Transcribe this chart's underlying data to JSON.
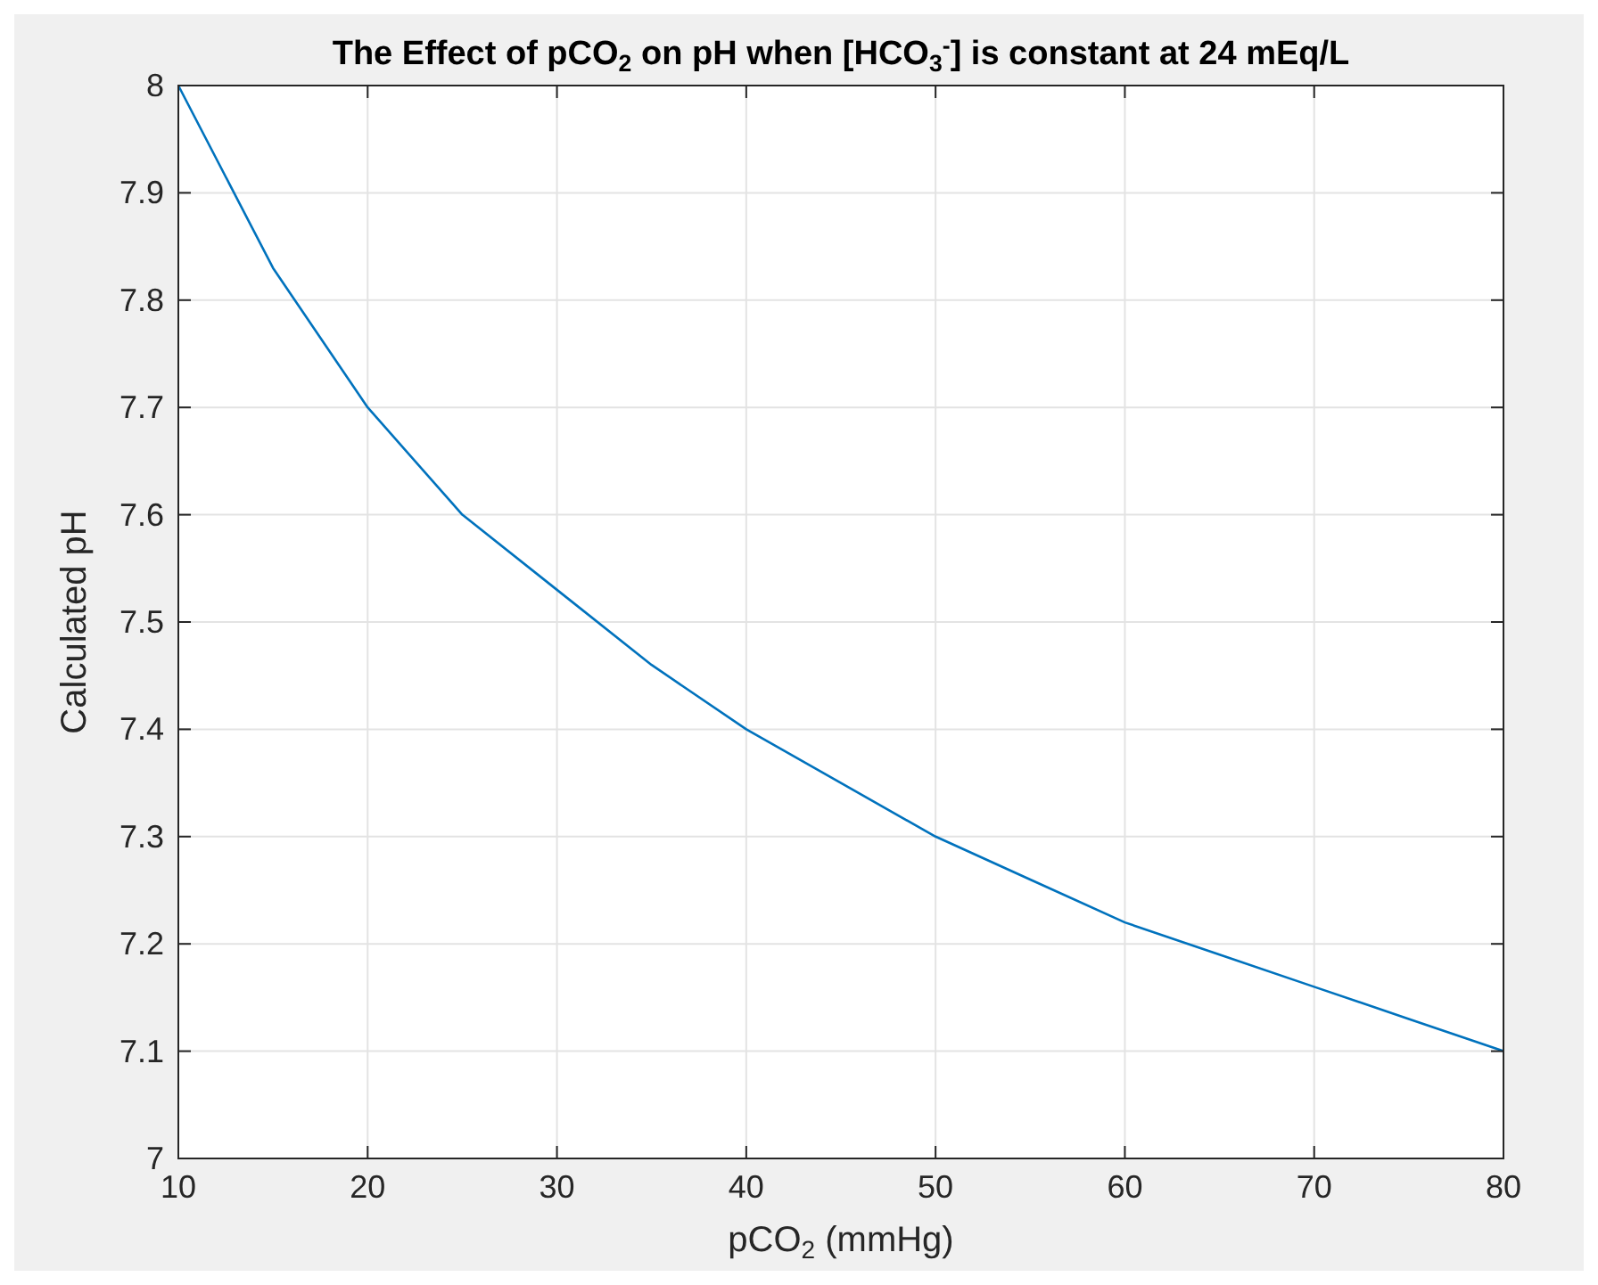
{
  "chart_data": {
    "type": "line",
    "title": "The Effect of pCO$_{2}$ on pH when [HCO$_{3}$$^{-}$] is constant at 24 mEq/L",
    "xlabel": "pCO$_{2}$ (mmHg)",
    "ylabel": "Calculated pH",
    "x": [
      10,
      15,
      20,
      25,
      30,
      35,
      40,
      45,
      50,
      55,
      60,
      65,
      70,
      75,
      80
    ],
    "series": [
      {
        "color": "#0072bd",
        "values": [
          8.0,
          7.83,
          7.7,
          7.6,
          7.53,
          7.46,
          7.4,
          7.35,
          7.3,
          7.26,
          7.22,
          7.19,
          7.16,
          7.13,
          7.1
        ]
      }
    ],
    "xlim": [
      10,
      80
    ],
    "xticks": [
      10,
      20,
      30,
      40,
      50,
      60,
      70,
      80
    ],
    "ylim": [
      7,
      8
    ],
    "yticks": [
      7,
      7.1,
      7.2,
      7.3,
      7.4,
      7.5,
      7.6,
      7.7,
      7.8,
      7.9,
      8
    ],
    "grid": true,
    "marker": "none",
    "line_style": "solid"
  }
}
